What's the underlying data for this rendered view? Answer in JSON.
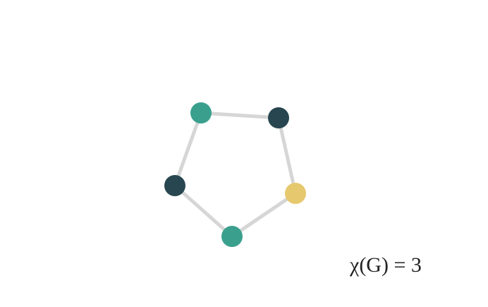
{
  "graph": {
    "edge_color": "#d6d6d6",
    "nodes": [
      {
        "id": "n1",
        "color": "#3aa08d"
      },
      {
        "id": "n2",
        "color": "#27464f"
      },
      {
        "id": "n3",
        "color": "#e6c86e"
      },
      {
        "id": "n4",
        "color": "#3aa08d"
      },
      {
        "id": "n5",
        "color": "#27464f"
      }
    ],
    "edges": [
      [
        "n1",
        "n2"
      ],
      [
        "n2",
        "n3"
      ],
      [
        "n3",
        "n4"
      ],
      [
        "n4",
        "n5"
      ],
      [
        "n5",
        "n1"
      ]
    ]
  },
  "label": {
    "chromatic_number": "χ(G) = 3"
  }
}
